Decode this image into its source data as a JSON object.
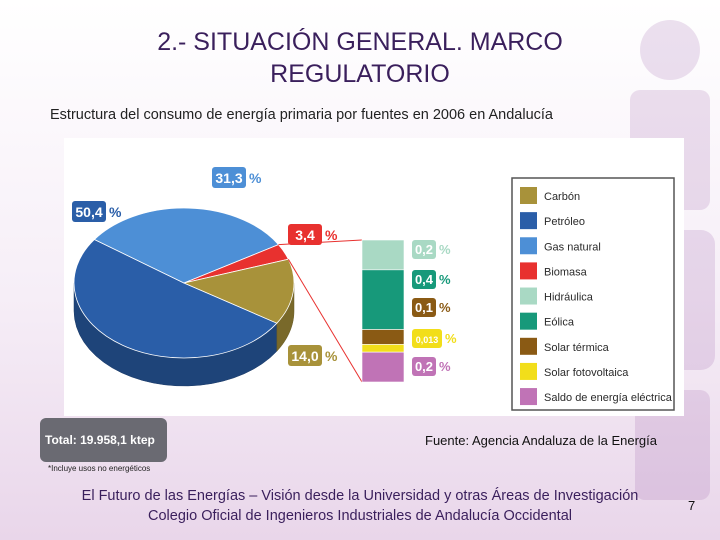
{
  "slide": {
    "title_line1": "2.- SITUACIÓN GENERAL. MARCO",
    "title_line2": "REGULATORIO",
    "subtitle": "Estructura del consumo de energía primaria por fuentes en 2006 en Andalucía",
    "total": "Total: 19.958,1 ktep",
    "source": "Fuente: Agencia Andaluza de la Energía",
    "footnote": "*Incluye usos no energéticos",
    "footer_line1": "El Futuro de las Energías – Visión desde la Universidad y otras Áreas de Investigación",
    "footer_line2": "Colegio Oficial de Ingenieros Industriales de Andalucía Occidental",
    "page_number": "7"
  },
  "chart_data": {
    "type": "pie",
    "title": "Estructura del consumo de energía primaria por fuentes en 2006 en Andalucía",
    "unit": "%",
    "pie": [
      {
        "name": "Petróleo",
        "value": 50.4,
        "label": "50,4",
        "color": "#2a5ea8"
      },
      {
        "name": "Gas natural",
        "value": 31.3,
        "label": "31,3",
        "color": "#4d8fd6"
      },
      {
        "name": "Biomasa",
        "value": 3.4,
        "label": "3,4",
        "color": "#e8312f"
      },
      {
        "name": "Carbón",
        "value": 14.0,
        "label": "14,0",
        "color": "#a8923a"
      }
    ],
    "stack": [
      {
        "name": "Hidráulica",
        "value": 0.2,
        "label": "0,2",
        "color": "#a9d9c4"
      },
      {
        "name": "Eólica",
        "value": 0.4,
        "label": "0,4",
        "color": "#17997a"
      },
      {
        "name": "Solar térmica",
        "value": 0.1,
        "label": "0,1",
        "color": "#8a5a14"
      },
      {
        "name": "Solar fotovoltaica",
        "value": 0.013,
        "label": "0,013",
        "color": "#f2de1a"
      },
      {
        "name": "Saldo de energía eléctrica",
        "value": 0.2,
        "label": "0,2",
        "color": "#c073b6"
      }
    ],
    "percent_sign": "%",
    "legend": [
      {
        "name": "Carbón",
        "color": "#a8923a"
      },
      {
        "name": "Petróleo",
        "color": "#2a5ea8"
      },
      {
        "name": "Gas natural",
        "color": "#4d8fd6"
      },
      {
        "name": "Biomasa",
        "color": "#e8312f"
      },
      {
        "name": "Hidráulica",
        "color": "#a9d9c4"
      },
      {
        "name": "Eólica",
        "color": "#17997a"
      },
      {
        "name": "Solar térmica",
        "color": "#8a5a14"
      },
      {
        "name": "Solar fotovoltaica",
        "color": "#f2de1a"
      },
      {
        "name": "Saldo de energía eléctrica",
        "color": "#c073b6"
      }
    ],
    "legend_position": "right"
  }
}
